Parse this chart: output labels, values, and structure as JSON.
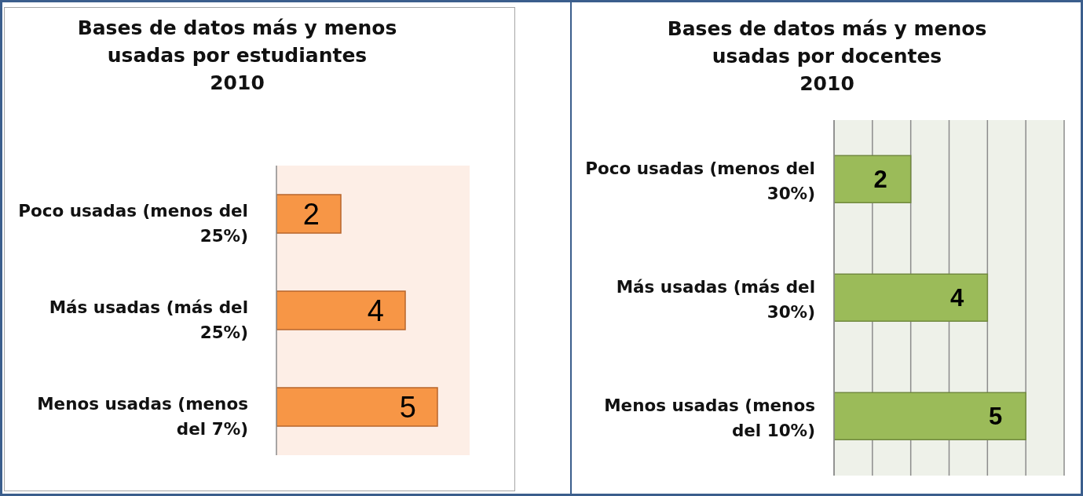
{
  "chart_data": [
    {
      "type": "bar",
      "orientation": "horizontal",
      "title": "Bases de datos más y menos usadas por estudiantes",
      "subtitle": "2010",
      "categories": [
        "Poco usadas (menos del 25%)",
        "Más usadas (más del 25%)",
        "Menos usadas (menos del 7%)"
      ],
      "values": [
        2,
        4,
        5
      ],
      "color": "#f79646",
      "xlim": [
        0,
        6
      ],
      "data_labels": true,
      "tick_labels": "y"
    },
    {
      "type": "bar",
      "orientation": "horizontal",
      "title": "Bases de datos más y menos usadas por docentes",
      "subtitle": "2010",
      "categories": [
        "Poco usadas (menos del 30%)",
        "Más usadas (más del 30%)",
        "Menos usadas (menos del 10%)"
      ],
      "values": [
        2,
        4,
        5
      ],
      "color": "#9bbb59",
      "xlim": [
        0,
        6
      ],
      "xticks": [
        {
          "value": 0,
          "label": null
        },
        {
          "value": 1,
          "label": null
        },
        {
          "value": 2,
          "label": null
        },
        {
          "value": 3,
          "label": null
        },
        {
          "value": 4,
          "label": null
        },
        {
          "value": 5,
          "label": null
        },
        {
          "value": 6,
          "label": null
        }
      ],
      "data_labels": true,
      "tick_labels": "y",
      "grid": "x"
    }
  ]
}
